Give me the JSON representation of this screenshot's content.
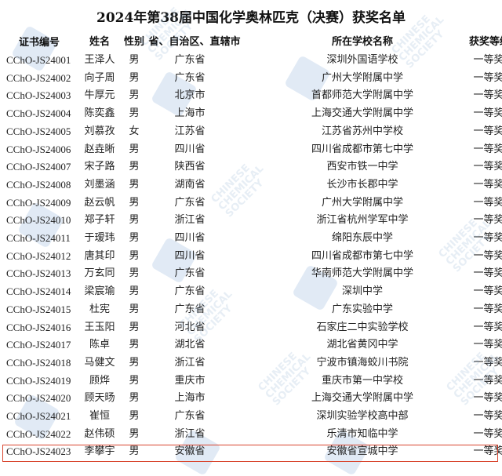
{
  "title": "2024年第38届中国化学奥林匹克（决赛）获奖名单",
  "watermark": "CHINESE CHEMICAL SOCIETY",
  "highlight_color": "#d9452e",
  "headers": {
    "cert": "证书编号",
    "name": "姓名",
    "gender": "性别",
    "province": "省、自治区、直辖市",
    "school": "所在学校名称",
    "award": "获奖等级"
  },
  "rows": [
    {
      "cert": "CChO-JS24001",
      "name": "王泽人",
      "gender": "男",
      "province": "广东省",
      "school": "深圳外国语学校",
      "award": "一等奖"
    },
    {
      "cert": "CChO-JS24002",
      "name": "向子周",
      "gender": "男",
      "province": "广东省",
      "school": "广州大学附属中学",
      "award": "一等奖"
    },
    {
      "cert": "CChO-JS24003",
      "name": "牛厚元",
      "gender": "男",
      "province": "北京市",
      "school": "首都师范大学附属中学",
      "award": "一等奖"
    },
    {
      "cert": "CChO-JS24004",
      "name": "陈奕鑫",
      "gender": "男",
      "province": "上海市",
      "school": "上海交通大学附属中学",
      "award": "一等奖"
    },
    {
      "cert": "CChO-JS24005",
      "name": "刘慕孜",
      "gender": "女",
      "province": "江苏省",
      "school": "江苏省苏州中学校",
      "award": "一等奖"
    },
    {
      "cert": "CChO-JS24006",
      "name": "赵垚晰",
      "gender": "男",
      "province": "四川省",
      "school": "四川省成都市第七中学",
      "award": "一等奖"
    },
    {
      "cert": "CChO-JS24007",
      "name": "宋子路",
      "gender": "男",
      "province": "陕西省",
      "school": "西安市铁一中学",
      "award": "一等奖"
    },
    {
      "cert": "CChO-JS24008",
      "name": "刘墨涵",
      "gender": "男",
      "province": "湖南省",
      "school": "长沙市长郡中学",
      "award": "一等奖"
    },
    {
      "cert": "CChO-JS24009",
      "name": "赵云帆",
      "gender": "男",
      "province": "广东省",
      "school": "广州大学附属中学",
      "award": "一等奖"
    },
    {
      "cert": "CChO-JS24010",
      "name": "郑子轩",
      "gender": "男",
      "province": "浙江省",
      "school": "浙江省杭州学军中学",
      "award": "一等奖"
    },
    {
      "cert": "CChO-JS24011",
      "name": "于瑷玮",
      "gender": "男",
      "province": "四川省",
      "school": "绵阳东辰中学",
      "award": "一等奖"
    },
    {
      "cert": "CChO-JS24012",
      "name": "唐其印",
      "gender": "男",
      "province": "四川省",
      "school": "四川省成都市第七中学",
      "award": "一等奖"
    },
    {
      "cert": "CChO-JS24013",
      "name": "万玄同",
      "gender": "男",
      "province": "广东省",
      "school": "华南师范大学附属中学",
      "award": "一等奖"
    },
    {
      "cert": "CChO-JS24014",
      "name": "梁宸瑜",
      "gender": "男",
      "province": "广东省",
      "school": "深圳中学",
      "award": "一等奖"
    },
    {
      "cert": "CChO-JS24015",
      "name": "杜宪",
      "gender": "男",
      "province": "广东省",
      "school": "广东实验中学",
      "award": "一等奖"
    },
    {
      "cert": "CChO-JS24016",
      "name": "王玉阳",
      "gender": "男",
      "province": "河北省",
      "school": "石家庄二中实验学校",
      "award": "一等奖"
    },
    {
      "cert": "CChO-JS24017",
      "name": "陈卓",
      "gender": "男",
      "province": "湖北省",
      "school": "湖北省黄冈中学",
      "award": "一等奖"
    },
    {
      "cert": "CChO-JS24018",
      "name": "马健文",
      "gender": "男",
      "province": "浙江省",
      "school": "宁波市镇海蛟川书院",
      "award": "一等奖"
    },
    {
      "cert": "CChO-JS24019",
      "name": "顾烨",
      "gender": "男",
      "province": "重庆市",
      "school": "重庆市第一中学校",
      "award": "一等奖"
    },
    {
      "cert": "CChO-JS24020",
      "name": "顾天旸",
      "gender": "男",
      "province": "上海市",
      "school": "上海交通大学附属中学",
      "award": "一等奖"
    },
    {
      "cert": "CChO-JS24021",
      "name": "崔恒",
      "gender": "男",
      "province": "广东省",
      "school": "深圳实验学校高中部",
      "award": "一等奖"
    },
    {
      "cert": "CChO-JS24022",
      "name": "赵伟硕",
      "gender": "男",
      "province": "浙江省",
      "school": "乐清市知临中学",
      "award": "一等奖"
    },
    {
      "cert": "CChO-JS24023",
      "name": "李攀宇",
      "gender": "男",
      "province": "安徽省",
      "school": "安徽省宣城中学",
      "award": "一等奖",
      "highlighted": true
    }
  ]
}
